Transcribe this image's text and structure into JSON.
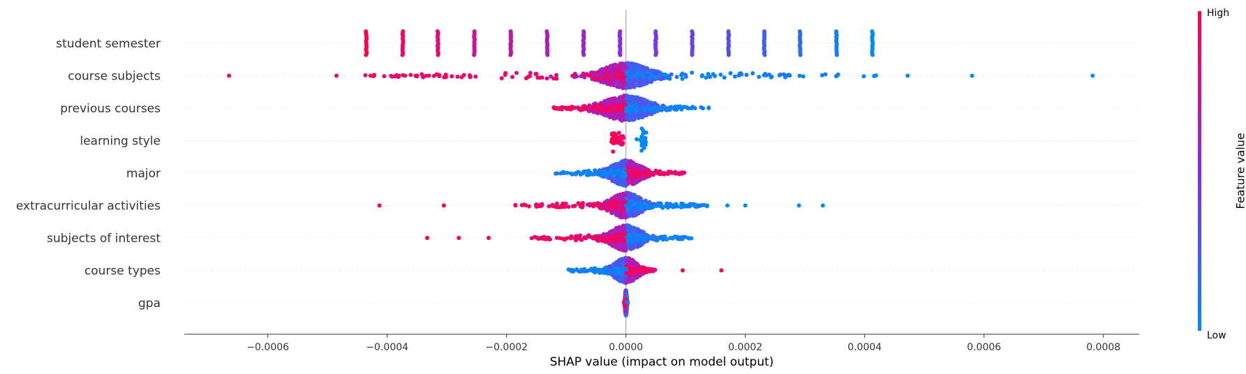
{
  "chart_data": {
    "type": "scatter",
    "subtype": "shap-beeswarm",
    "title": "",
    "xlabel": "SHAP value (impact on model output)",
    "ylabel": "",
    "xlim": [
      -0.00074,
      0.00086
    ],
    "xticks": [
      -0.0006,
      -0.0004,
      -0.0002,
      0.0,
      0.0002,
      0.0004,
      0.0006,
      0.0008
    ],
    "xtick_labels": [
      "−0.0006",
      "−0.0004",
      "−0.0002",
      "0.0000",
      "0.0002",
      "0.0004",
      "0.0006",
      "0.0008"
    ],
    "grid": false,
    "colors": {
      "low": "#008bfb",
      "mid": "#8a2be2",
      "high": "#ff0052"
    },
    "colorbar": {
      "title": "Feature value",
      "high_label": "High",
      "low_label": "Low"
    },
    "features": [
      {
        "name": "student semester",
        "kind": "discrete",
        "points": [
          {
            "x": -0.000435,
            "v": 1.0
          },
          {
            "x": -0.000374,
            "v": 0.93
          },
          {
            "x": -0.000315,
            "v": 0.86
          },
          {
            "x": -0.000254,
            "v": 0.79
          },
          {
            "x": -0.000193,
            "v": 0.72
          },
          {
            "x": -0.000132,
            "v": 0.65
          },
          {
            "x": -7.1e-05,
            "v": 0.58
          },
          {
            "x": -1e-05,
            "v": 0.51
          },
          {
            "x": 5e-05,
            "v": 0.44
          },
          {
            "x": 0.000111,
            "v": 0.37
          },
          {
            "x": 0.000172,
            "v": 0.3
          },
          {
            "x": 0.000232,
            "v": 0.23
          },
          {
            "x": 0.000292,
            "v": 0.15
          },
          {
            "x": 0.000353,
            "v": 0.08
          },
          {
            "x": 0.000413,
            "v": 0.0
          }
        ]
      },
      {
        "name": "course subjects",
        "kind": "spread",
        "center": 0.0,
        "core_sd": 3e-05,
        "left_range": [
          -0.00045,
          0
        ],
        "right_range": [
          0,
          0.00043
        ],
        "left_color": "high",
        "right_color": "low",
        "outliers": [
          {
            "x": -0.000665,
            "v": 1.0
          },
          {
            "x": -0.000485,
            "v": 1.0
          },
          {
            "x": -0.000428,
            "v": 1.0
          },
          {
            "x": -0.00037,
            "v": 1.0
          },
          {
            "x": -0.00035,
            "v": 1.0
          },
          {
            "x": -0.00033,
            "v": 1.0
          },
          {
            "x": 0.000472,
            "v": 0.0
          },
          {
            "x": 0.00058,
            "v": 0.0
          },
          {
            "x": 0.000782,
            "v": 0.0
          }
        ]
      },
      {
        "name": "previous courses",
        "kind": "spread",
        "center": 0.0,
        "core_sd": 3e-05,
        "left_range": [
          -0.00013,
          0
        ],
        "right_range": [
          0,
          0.00014
        ],
        "left_color": "high",
        "right_color": "low",
        "outliers": []
      },
      {
        "name": "learning style",
        "kind": "clusters",
        "clusters": [
          {
            "x": -2e-05,
            "v": 1.0,
            "spread": 4e-06
          },
          {
            "x": -8e-06,
            "v": 0.92,
            "spread": 4e-06
          },
          {
            "x": 3e-05,
            "v": 0.0,
            "spread": 4e-06
          }
        ]
      },
      {
        "name": "major",
        "kind": "spread",
        "center": 0.0,
        "core_sd": 2e-05,
        "left_range": [
          -0.00012,
          0
        ],
        "right_range": [
          0,
          0.0001
        ],
        "left_color": "low",
        "right_color": "high",
        "outliers": []
      },
      {
        "name": "extracurricular activities",
        "kind": "spread",
        "center": 0.0,
        "core_sd": 2e-05,
        "left_range": [
          -0.00019,
          0
        ],
        "right_range": [
          0,
          0.00014
        ],
        "left_color": "high",
        "right_color": "low",
        "outliers": [
          {
            "x": -0.000413,
            "v": 1.0
          },
          {
            "x": -0.000305,
            "v": 1.0
          },
          {
            "x": -0.000185,
            "v": 1.0
          },
          {
            "x": 0.00017,
            "v": 0.0
          },
          {
            "x": 0.0002,
            "v": 0.0
          },
          {
            "x": 0.00029,
            "v": 0.0
          },
          {
            "x": 0.00033,
            "v": 0.0
          }
        ]
      },
      {
        "name": "subjects of interest",
        "kind": "spread",
        "center": 0.0,
        "core_sd": 2e-05,
        "left_range": [
          -0.000165,
          0
        ],
        "right_range": [
          0,
          0.00011
        ],
        "left_color": "high",
        "right_color": "low",
        "outliers": [
          {
            "x": -0.000333,
            "v": 1.0
          },
          {
            "x": -0.00028,
            "v": 1.0
          },
          {
            "x": -0.00023,
            "v": 1.0
          }
        ]
      },
      {
        "name": "course types",
        "kind": "spread",
        "center": 0.0,
        "core_sd": 1.5e-05,
        "left_range": [
          -0.0001,
          0
        ],
        "right_range": [
          0,
          5e-05
        ],
        "left_color": "low",
        "right_color": "high",
        "outliers": [
          {
            "x": 9.5e-05,
            "v": 1.0
          },
          {
            "x": 0.00016,
            "v": 1.0
          }
        ]
      },
      {
        "name": "gpa",
        "kind": "spread",
        "center": 0.0,
        "core_sd": 1e-06,
        "left_range": [
          -3e-06,
          0
        ],
        "right_range": [
          0,
          3e-06
        ],
        "left_color": "high",
        "right_color": "low",
        "outliers": []
      }
    ]
  }
}
